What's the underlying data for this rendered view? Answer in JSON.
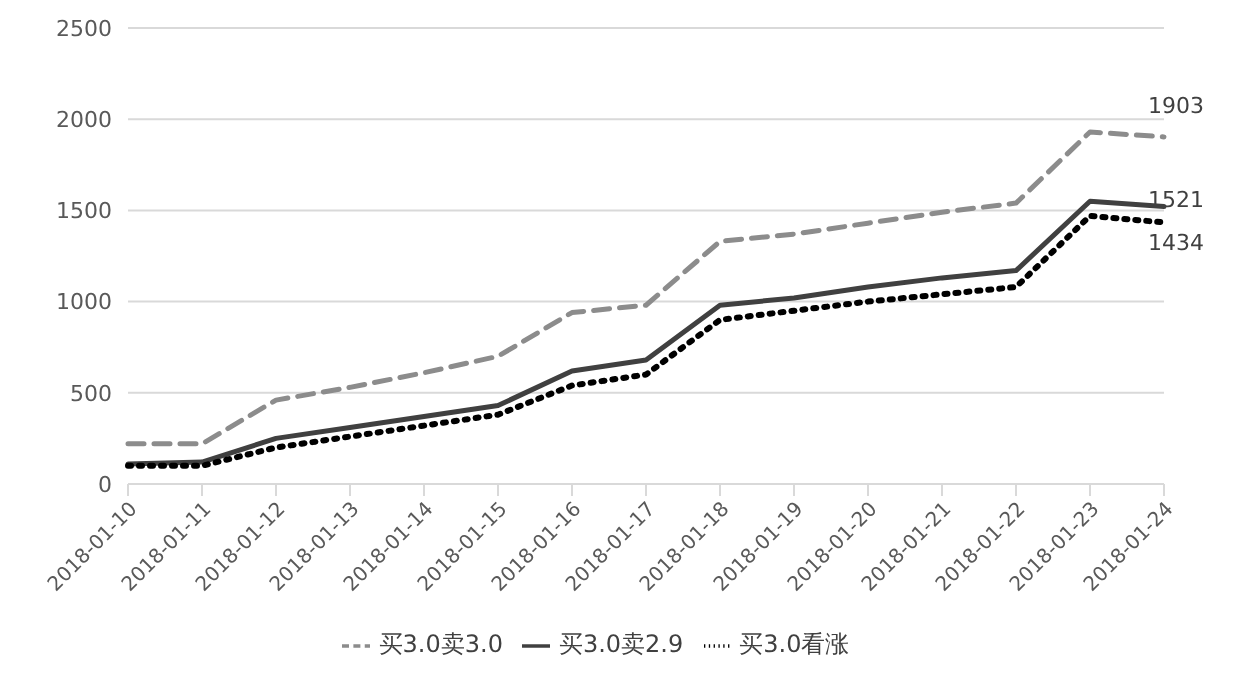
{
  "chart_data": {
    "type": "line",
    "categories": [
      "2018-01-10",
      "2018-01-11",
      "2018-01-12",
      "2018-01-13",
      "2018-01-14",
      "2018-01-15",
      "2018-01-16",
      "2018-01-17",
      "2018-01-18",
      "2018-01-19",
      "2018-01-20",
      "2018-01-21",
      "2018-01-22",
      "2018-01-23",
      "2018-01-24"
    ],
    "series": [
      {
        "name": "买3.0卖3.0",
        "color": "#8c8c8c",
        "line_style": "dashed",
        "values": [
          220,
          220,
          460,
          530,
          610,
          700,
          940,
          980,
          1330,
          1370,
          1430,
          1490,
          1540,
          1930,
          1903
        ],
        "value_labels": [
          null,
          null,
          null,
          null,
          null,
          null,
          null,
          null,
          null,
          null,
          null,
          null,
          null,
          null,
          "1903"
        ]
      },
      {
        "name": "买3.0卖2.9",
        "color": "#404040",
        "line_style": "solid",
        "values": [
          110,
          120,
          250,
          310,
          370,
          430,
          620,
          680,
          980,
          1020,
          1080,
          1130,
          1170,
          1550,
          1521
        ],
        "value_labels": [
          null,
          null,
          null,
          null,
          null,
          null,
          null,
          null,
          null,
          null,
          null,
          null,
          null,
          null,
          "1521"
        ]
      },
      {
        "name": "买3.0看涨",
        "color": "#000000",
        "line_style": "dotted",
        "values": [
          100,
          100,
          200,
          260,
          320,
          380,
          540,
          600,
          900,
          950,
          1000,
          1040,
          1080,
          1470,
          1434
        ],
        "value_labels": [
          null,
          null,
          null,
          null,
          null,
          null,
          null,
          null,
          null,
          null,
          null,
          null,
          null,
          null,
          "1434"
        ]
      }
    ],
    "ylim": [
      0,
      2500
    ],
    "yticks": [
      0,
      500,
      1000,
      1500,
      2000,
      2500
    ],
    "grid": "y",
    "legend": "bottom",
    "marker": "none"
  }
}
